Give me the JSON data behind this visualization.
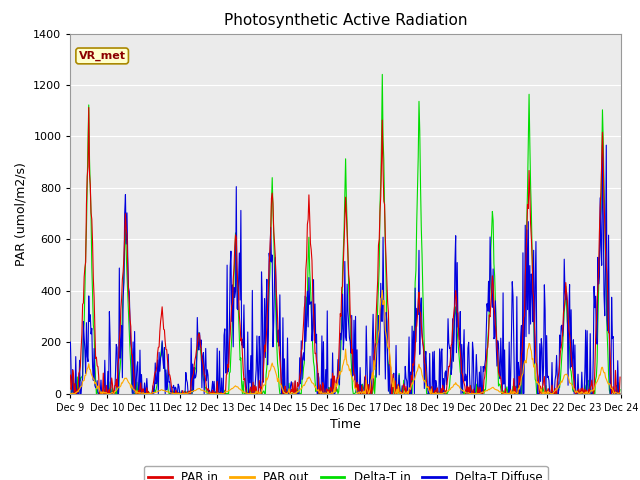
{
  "title": "Photosynthetic Active Radiation",
  "ylabel": "PAR (umol/m2/s)",
  "xlabel": "Time",
  "ylim": [
    0,
    1400
  ],
  "yticks": [
    0,
    200,
    400,
    600,
    800,
    1000,
    1200,
    1400
  ],
  "xtick_labels": [
    "Dec 9",
    "Dec 10",
    "Dec 11",
    "Dec 12",
    "Dec 13",
    "Dec 14",
    "Dec 15",
    "Dec 16",
    "Dec 17",
    "Dec 18",
    "Dec 19",
    "Dec 20",
    "Dec 21",
    "Dec 22",
    "Dec 23",
    "Dec 24"
  ],
  "colors": {
    "par_in": "#dd0000",
    "par_out": "#ffaa00",
    "delta_t_in": "#00dd00",
    "delta_t_diffuse": "#0000dd"
  },
  "legend_labels": [
    "PAR in",
    "PAR out",
    "Delta-T in",
    "Delta-T Diffuse"
  ],
  "annotation_text": "VR_met",
  "annotation_color": "#8b0000",
  "annotation_bg": "#ffffcc",
  "plot_bg": "#ebebeb",
  "title_fontsize": 11,
  "label_fontsize": 9,
  "tick_fontsize": 8
}
